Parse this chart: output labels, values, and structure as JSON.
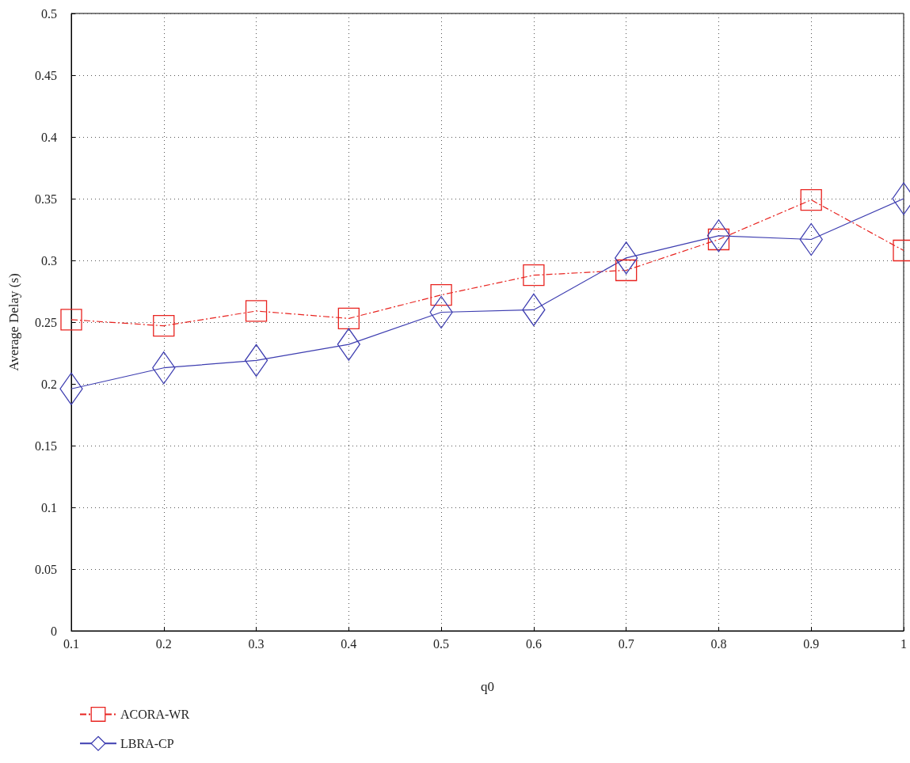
{
  "chart_data": {
    "type": "line",
    "xlabel": "q0",
    "ylabel": "Average Delay (s)",
    "x": [
      0.1,
      0.2,
      0.3,
      0.4,
      0.5,
      0.6,
      0.7,
      0.8,
      0.9,
      1
    ],
    "series": [
      {
        "name": "ACORA-WR",
        "color": "#e8231f",
        "marker": "square",
        "line_style": "dashdot",
        "values": [
          0.252,
          0.247,
          0.259,
          0.253,
          0.272,
          0.288,
          0.292,
          0.317,
          0.349,
          0.308
        ]
      },
      {
        "name": "LBRA-CP",
        "color": "#3d3db0",
        "marker": "diamond",
        "line_style": "solid",
        "values": [
          0.196,
          0.213,
          0.219,
          0.232,
          0.258,
          0.26,
          0.302,
          0.32,
          0.317,
          0.35
        ]
      }
    ],
    "xlim": [
      0.1,
      1
    ],
    "xticks": [
      0.1,
      0.2,
      0.3,
      0.4,
      0.5,
      0.6,
      0.7,
      0.8,
      0.9,
      1
    ],
    "ylim": [
      0,
      0.5
    ],
    "yticks": [
      0,
      0.05,
      0.1,
      0.15,
      0.2,
      0.25,
      0.3,
      0.35,
      0.4,
      0.45,
      0.5
    ],
    "grid": true,
    "legend": "bottom left"
  }
}
